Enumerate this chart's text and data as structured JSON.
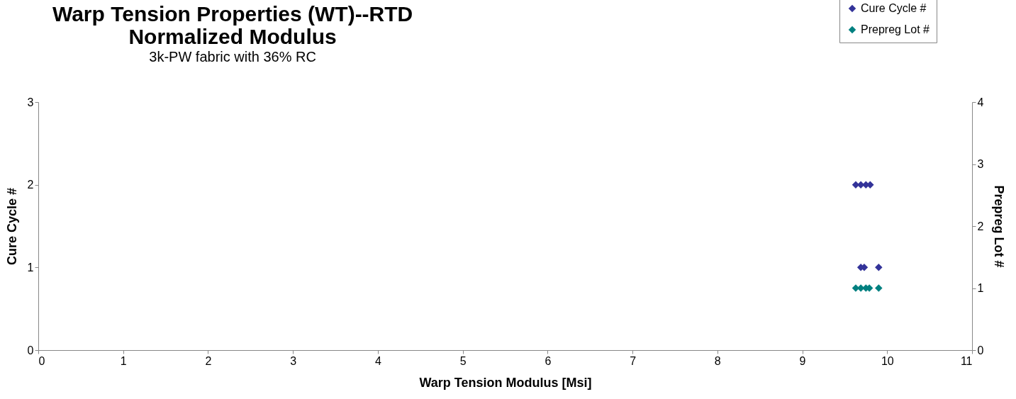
{
  "chart_data": {
    "type": "scatter",
    "title": [
      "Warp Tension Properties (WT)--RTD",
      "Normalized Modulus"
    ],
    "subtitle": "3k-PW fabric with 36% RC",
    "xlabel": "Warp Tension Modulus [Msi]",
    "ylabel": "Cure Cycle #",
    "y2label": "Prepreg Lot #",
    "xlim": [
      0,
      11
    ],
    "xticks": [
      0,
      1,
      2,
      3,
      4,
      5,
      6,
      7,
      8,
      9,
      10,
      11
    ],
    "ylim": [
      0,
      3
    ],
    "yticks": [
      0,
      1,
      2,
      3
    ],
    "y2lim": [
      0,
      4
    ],
    "y2ticks": [
      0,
      1,
      2,
      3,
      4
    ],
    "marker": "diamond",
    "legend": "top right",
    "grid": false,
    "series": [
      {
        "name": "Cure Cycle #",
        "color": "#333399",
        "x": [
          9.63,
          9.69,
          9.75,
          9.8,
          9.69,
          9.73,
          9.9
        ],
        "values": [
          2,
          2,
          2,
          2,
          1,
          1,
          1
        ]
      },
      {
        "name": "Prepreg Lot #",
        "color": "#008080",
        "axis": "y2",
        "x": [
          9.63,
          9.69,
          9.75,
          9.79,
          9.9
        ],
        "values": [
          1,
          1,
          1,
          1,
          1
        ]
      }
    ]
  }
}
